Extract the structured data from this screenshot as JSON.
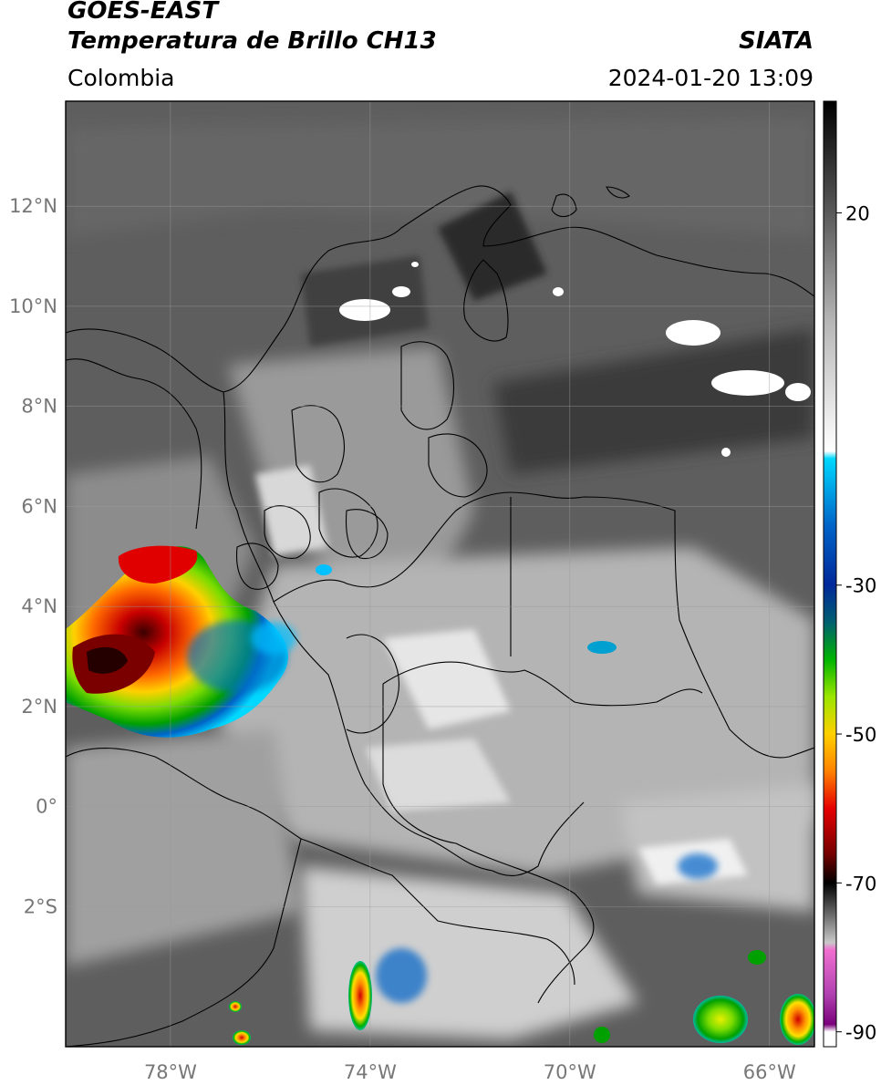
{
  "header": {
    "satellite": "GOES-EAST",
    "product": "Temperatura de Brillo CH13",
    "region": "Colombia",
    "source": "SIATA",
    "datetime": "2024-01-20 13:09"
  },
  "map": {
    "lat_ticks": [
      {
        "value": 12,
        "label": "12°N"
      },
      {
        "value": 10,
        "label": "10°N"
      },
      {
        "value": 8,
        "label": "8°N"
      },
      {
        "value": 6,
        "label": "6°N"
      },
      {
        "value": 4,
        "label": "4°N"
      },
      {
        "value": 2,
        "label": "2°N"
      },
      {
        "value": 0,
        "label": "0°"
      },
      {
        "value": -2,
        "label": "2°S"
      }
    ],
    "lon_ticks": [
      {
        "value": -78,
        "label": "78°W"
      },
      {
        "value": -74,
        "label": "74°W"
      },
      {
        "value": -70,
        "label": "70°W"
      },
      {
        "value": -66,
        "label": "66°W"
      }
    ],
    "extent": {
      "lon_min": -80.1,
      "lon_max": -65.1,
      "lat_min": -4.8,
      "lat_max": 14.1
    },
    "background_color": "#5e5e5e",
    "border_color": "#000000"
  },
  "colorbar": {
    "labels": [
      {
        "value": 20,
        "label": "20"
      },
      {
        "value": -30,
        "label": "-30"
      },
      {
        "value": -50,
        "label": "-50"
      },
      {
        "value": -70,
        "label": "-70"
      },
      {
        "value": -90,
        "label": "-90"
      }
    ],
    "range": [
      -92,
      35
    ],
    "stops": [
      {
        "value": 35,
        "color": "#000000"
      },
      {
        "value": 20,
        "color": "#5a5a5a"
      },
      {
        "value": 5,
        "color": "#b8b8b8"
      },
      {
        "value": -12,
        "color": "#ffffff"
      },
      {
        "value": -13,
        "color": "#00d8ff"
      },
      {
        "value": -22,
        "color": "#0064c8"
      },
      {
        "value": -30,
        "color": "#00289a"
      },
      {
        "value": -35,
        "color": "#006070"
      },
      {
        "value": -40,
        "color": "#00b400"
      },
      {
        "value": -45,
        "color": "#9be600"
      },
      {
        "value": -50,
        "color": "#ffd000"
      },
      {
        "value": -55,
        "color": "#ff8200"
      },
      {
        "value": -60,
        "color": "#e60000"
      },
      {
        "value": -66,
        "color": "#780000"
      },
      {
        "value": -70,
        "color": "#000000"
      },
      {
        "value": -78,
        "color": "#c8c8c8"
      },
      {
        "value": -79,
        "color": "#f070d0"
      },
      {
        "value": -85,
        "color": "#b040b0"
      },
      {
        "value": -89,
        "color": "#7a007a"
      },
      {
        "value": -90,
        "color": "#ffffff"
      }
    ]
  }
}
